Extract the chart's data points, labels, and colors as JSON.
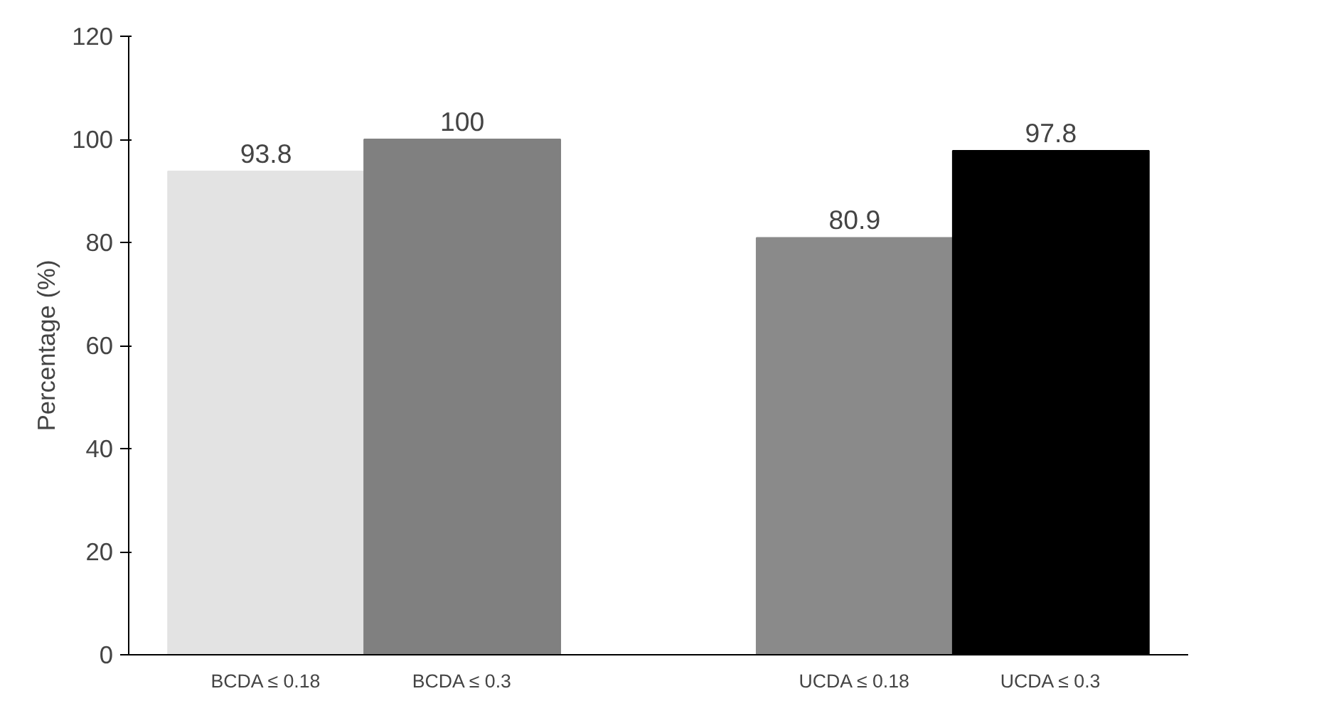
{
  "chart_data": {
    "type": "bar",
    "ylabel": "Percentage (%)",
    "categories": [
      "BCDA ≤ 0.18",
      "BCDA ≤ 0.3",
      null,
      "UCDA ≤ 0.18",
      "UCDA ≤ 0.3"
    ],
    "values": [
      93.8,
      100,
      null,
      80.9,
      97.8
    ],
    "colors": [
      "#e3e3e3",
      "#808080",
      "#ffffff",
      "#8a8a8a",
      "#000000"
    ],
    "ylim": [
      0,
      120
    ],
    "yticks": [
      0,
      20,
      40,
      60,
      80,
      100,
      120
    ],
    "grid": false,
    "data_labels": true
  }
}
